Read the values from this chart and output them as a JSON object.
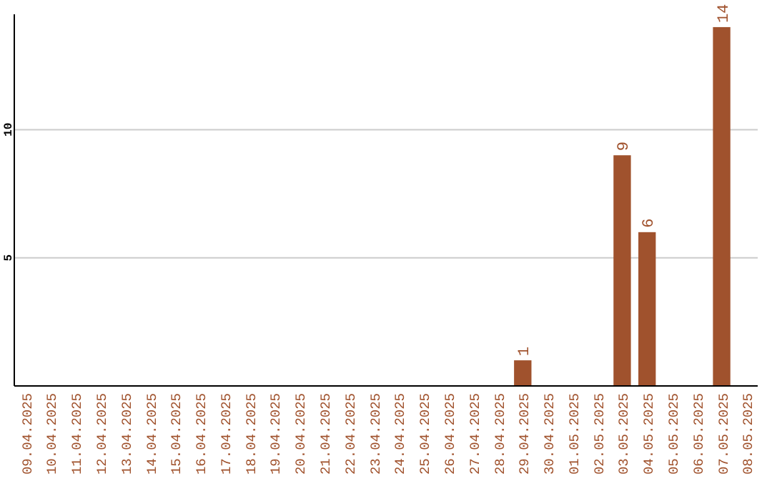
{
  "chart_data": {
    "type": "bar",
    "categories": [
      "09.04.2025",
      "10.04.2025",
      "11.04.2025",
      "12.04.2025",
      "13.04.2025",
      "14.04.2025",
      "15.04.2025",
      "16.04.2025",
      "17.04.2025",
      "18.04.2025",
      "19.04.2025",
      "20.04.2025",
      "21.04.2025",
      "22.04.2025",
      "23.04.2025",
      "24.04.2025",
      "25.04.2025",
      "26.04.2025",
      "27.04.2025",
      "28.04.2025",
      "29.04.2025",
      "30.04.2025",
      "01.05.2025",
      "02.05.2025",
      "03.05.2025",
      "04.05.2025",
      "05.05.2025",
      "06.05.2025",
      "07.05.2025",
      "08.05.2025"
    ],
    "values": [
      0,
      0,
      0,
      0,
      0,
      0,
      0,
      0,
      0,
      0,
      0,
      0,
      0,
      0,
      0,
      0,
      0,
      0,
      0,
      0,
      1,
      0,
      0,
      0,
      9,
      6,
      0,
      0,
      14,
      0
    ],
    "value_labels": [
      null,
      null,
      null,
      null,
      null,
      null,
      null,
      null,
      null,
      null,
      null,
      null,
      null,
      null,
      null,
      null,
      null,
      null,
      null,
      null,
      "1",
      null,
      null,
      null,
      "9",
      "6",
      null,
      null,
      "14",
      null
    ],
    "color": "#a0522d",
    "ylim": [
      0,
      14.5
    ],
    "yticks": [
      5,
      10
    ],
    "grid": "y"
  }
}
